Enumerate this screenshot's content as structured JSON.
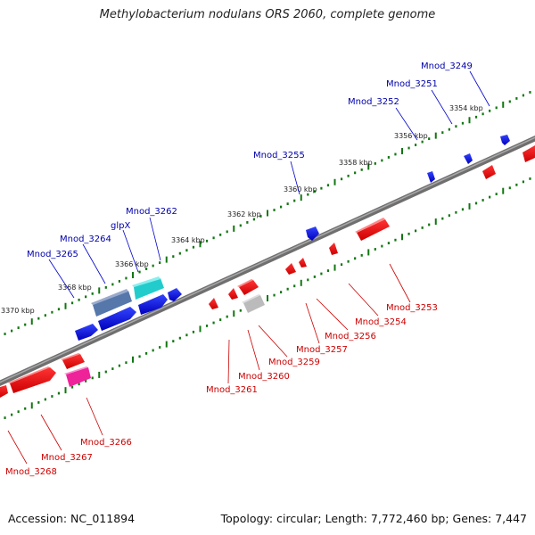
{
  "title": "Methylobacterium nodulans ORS 2060, complete genome",
  "accession": "Accession: NC_011894",
  "summary": "Topology: circular; Length: 7,772,460 bp; Genes: 7,447",
  "ruler": {
    "ticks": [
      "3354 kbp",
      "3356 kbp",
      "3358 kbp",
      "3360 kbp",
      "3362 kbp",
      "3364 kbp",
      "3366 kbp",
      "3368 kbp",
      "3370 kbp"
    ]
  },
  "colors": {
    "forward_gene": "#0000ee",
    "reverse_gene": "#ee0000",
    "forward_label": "#0000aa",
    "reverse_label": "#cc0000",
    "track_line": "#808080",
    "tick": "#117711",
    "glpX_gene": "#5577aa",
    "cyan_gene": "#22cccc",
    "pink_gene": "#ee2299",
    "grey_gene": "#bbbbbb"
  },
  "top_labels": [
    "Mnod_3249",
    "Mnod_3251",
    "Mnod_3252",
    "Mnod_3255",
    "Mnod_3262",
    "glpX",
    "Mnod_3264",
    "Mnod_3265"
  ],
  "bottom_labels": [
    "Mnod_3253",
    "Mnod_3254",
    "Mnod_3256",
    "Mnod_3257",
    "Mnod_3259",
    "Mnod_3260",
    "Mnod_3261",
    "Mnod_3266",
    "Mnod_3267",
    "Mnod_3268"
  ]
}
